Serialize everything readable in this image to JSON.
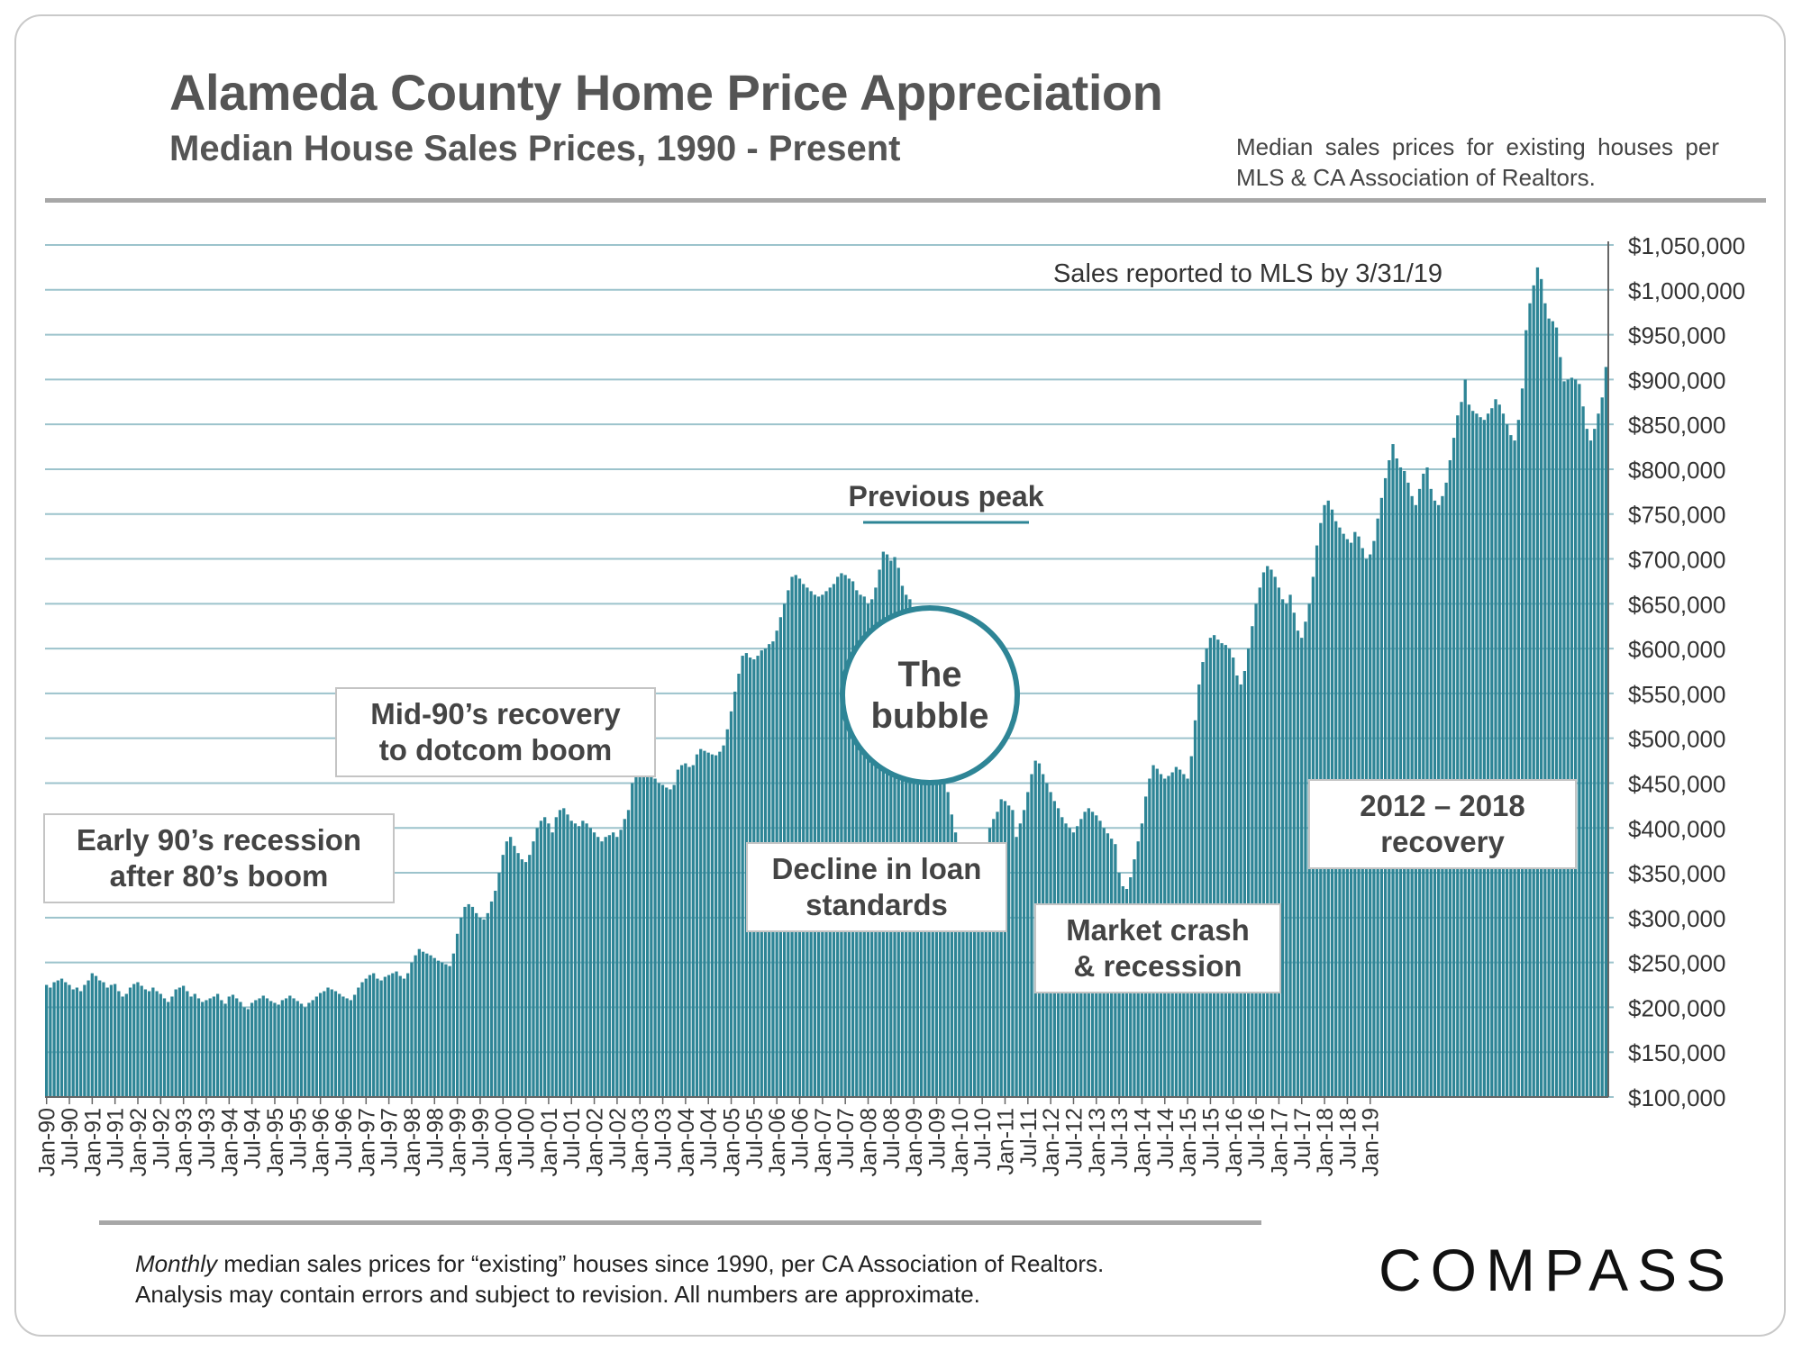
{
  "title": "Alameda County Home Price Appreciation",
  "subtitle": "Median House Sales Prices, 1990 - Present",
  "source_note": "Median sales prices for existing houses per MLS & CA Association of Realtors.",
  "footnote": {
    "italic": "Monthly",
    "line1": " median sales prices for “existing” houses since 1990, per CA Association of Realtors.",
    "line2": "Analysis may contain errors and subject to revision. All numbers are approximate."
  },
  "logo": "COMPASS",
  "annotations": {
    "sales_reported": "Sales reported to MLS by 3/31/19",
    "previous_peak": "Previous peak",
    "bubble": "The\nbubble",
    "early90s": "Early 90’s recession\nafter 80’s boom",
    "mid90s": "Mid-90’s recovery\nto dotcom boom",
    "decline": "Decline in loan\nstandards",
    "crash": "Market crash\n& recession",
    "recovery": "2012 – 2018\nrecovery"
  },
  "colors": {
    "bar": "#2e8596",
    "grid": "#9cc3cc",
    "text": "#555555"
  },
  "chart_data": {
    "type": "bar",
    "x_start": "Jan-90",
    "x_end": "Mar-19",
    "x_tick_labels": [
      "Jan-90",
      "Jul-90",
      "Jan-91",
      "Jul-91",
      "Jan-92",
      "Jul-92",
      "Jan-93",
      "Jul-93",
      "Jan-94",
      "Jul-94",
      "Jan-95",
      "Jul-95",
      "Jan-96",
      "Jul-96",
      "Jan-97",
      "Jul-97",
      "Jan-98",
      "Jul-98",
      "Jan-99",
      "Jul-99",
      "Jan-00",
      "Jul-00",
      "Jan-01",
      "Jul-01",
      "Jan-02",
      "Jul-02",
      "Jan-03",
      "Jul-03",
      "Jan-04",
      "Jul-04",
      "Jan-05",
      "Jul-05",
      "Jan-06",
      "Jul-06",
      "Jan-07",
      "Jul-07",
      "Jan-08",
      "Jul-08",
      "Jan-09",
      "Jul-09",
      "Jan-10",
      "Jul-10",
      "Jan-11",
      "Jul-11",
      "Jan-12",
      "Jul-12",
      "Jan-13",
      "Jul-13",
      "Jan-14",
      "Jul-14",
      "Jan-15",
      "Jul-15",
      "Jan-16",
      "Jul-16",
      "Jan-17",
      "Jul-17",
      "Jan-18",
      "Jul-18",
      "Jan-19"
    ],
    "y_tick_labels": [
      "$1,050,000",
      "$1,000,000",
      "$950,000",
      "$900,000",
      "$850,000",
      "$800,000",
      "$750,000",
      "$700,000",
      "$650,000",
      "$600,000",
      "$550,000",
      "$500,000",
      "$450,000",
      "$400,000",
      "$350,000",
      "$300,000",
      "$250,000",
      "$200,000",
      "$150,000",
      "$100,000"
    ],
    "ylim": [
      100000,
      1050000
    ],
    "grid": true,
    "series": [
      {
        "values": [
          225000,
          222000,
          228000,
          230000,
          232000,
          228000,
          225000,
          220000,
          222000,
          218000,
          225000,
          230000,
          238000,
          235000,
          230000,
          228000,
          222000,
          225000,
          226000,
          218000,
          212000,
          215000,
          222000,
          226000,
          228000,
          224000,
          220000,
          218000,
          222000,
          218000,
          215000,
          210000,
          206000,
          212000,
          220000,
          222000,
          224000,
          218000,
          212000,
          215000,
          210000,
          206000,
          208000,
          210000,
          212000,
          215000,
          208000,
          204000,
          212000,
          214000,
          210000,
          206000,
          200000,
          198000,
          205000,
          208000,
          210000,
          213000,
          210000,
          207000,
          205000,
          203000,
          208000,
          210000,
          213000,
          210000,
          207000,
          204000,
          200000,
          205000,
          208000,
          212000,
          216000,
          218000,
          222000,
          220000,
          218000,
          215000,
          212000,
          210000,
          208000,
          214000,
          222000,
          228000,
          232000,
          236000,
          238000,
          232000,
          230000,
          234000,
          236000,
          238000,
          240000,
          235000,
          232000,
          238000,
          250000,
          258000,
          265000,
          262000,
          260000,
          258000,
          255000,
          252000,
          250000,
          248000,
          246000,
          260000,
          282000,
          300000,
          312000,
          315000,
          312000,
          305000,
          300000,
          298000,
          305000,
          318000,
          330000,
          350000,
          370000,
          385000,
          390000,
          380000,
          372000,
          365000,
          362000,
          370000,
          385000,
          400000,
          408000,
          412000,
          405000,
          395000,
          412000,
          420000,
          422000,
          415000,
          408000,
          405000,
          402000,
          408000,
          405000,
          400000,
          395000,
          390000,
          385000,
          390000,
          392000,
          395000,
          390000,
          398000,
          410000,
          420000,
          450000,
          465000,
          468000,
          462000,
          460000,
          458000,
          455000,
          450000,
          448000,
          445000,
          443000,
          448000,
          465000,
          470000,
          472000,
          468000,
          470000,
          482000,
          488000,
          486000,
          484000,
          482000,
          481000,
          485000,
          492000,
          510000,
          530000,
          552000,
          572000,
          592000,
          595000,
          590000,
          588000,
          592000,
          598000,
          600000,
          605000,
          608000,
          620000,
          635000,
          650000,
          665000,
          680000,
          682000,
          678000,
          672000,
          668000,
          664000,
          660000,
          658000,
          660000,
          664000,
          668000,
          672000,
          680000,
          684000,
          682000,
          678000,
          675000,
          665000,
          660000,
          658000,
          650000,
          655000,
          668000,
          688000,
          708000,
          705000,
          698000,
          702000,
          690000,
          670000,
          660000,
          655000,
          625000,
          600000,
          580000,
          560000,
          540000,
          530000,
          526000,
          500000,
          465000,
          440000,
          415000,
          395000,
          375000,
          355000,
          340000,
          330000,
          328000,
          340000,
          360000,
          380000,
          400000,
          410000,
          418000,
          432000,
          430000,
          425000,
          420000,
          390000,
          405000,
          420000,
          440000,
          460000,
          475000,
          472000,
          460000,
          450000,
          440000,
          430000,
          422000,
          412000,
          405000,
          400000,
          395000,
          402000,
          410000,
          418000,
          422000,
          418000,
          414000,
          408000,
          400000,
          394000,
          388000,
          382000,
          350000,
          335000,
          332000,
          345000,
          365000,
          385000,
          405000,
          435000,
          455000,
          470000,
          466000,
          460000,
          455000,
          458000,
          462000,
          468000,
          465000,
          460000,
          455000,
          480000,
          520000,
          560000,
          585000,
          600000,
          612000,
          615000,
          610000,
          606000,
          604000,
          600000,
          590000,
          570000,
          560000,
          575000,
          600000,
          625000,
          650000,
          668000,
          685000,
          692000,
          688000,
          680000,
          668000,
          655000,
          650000,
          660000,
          640000,
          620000,
          612000,
          630000,
          650000,
          680000,
          715000,
          740000,
          760000,
          765000,
          755000,
          742000,
          735000,
          728000,
          722000,
          718000,
          730000,
          725000,
          712000,
          700000,
          705000,
          720000,
          745000,
          768000,
          790000,
          810000,
          828000,
          812000,
          802000,
          798000,
          785000,
          770000,
          760000,
          778000,
          795000,
          802000,
          778000,
          765000,
          760000,
          770000,
          785000,
          810000,
          835000,
          860000,
          875000,
          900000,
          872000,
          865000,
          862000,
          858000,
          855000,
          862000,
          868000,
          878000,
          872000,
          862000,
          850000,
          838000,
          832000,
          855000,
          890000,
          955000,
          985000,
          1005000,
          1025000,
          1012000,
          985000,
          968000,
          965000,
          958000,
          925000,
          898000,
          900000,
          902000,
          900000,
          895000,
          870000,
          845000,
          832000,
          845000,
          862000,
          880000,
          914000
        ]
      }
    ]
  }
}
